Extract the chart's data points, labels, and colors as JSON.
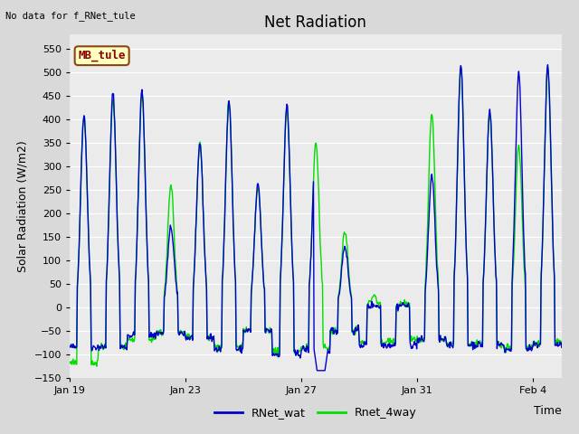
{
  "title": "Net Radiation",
  "xlabel": "Time",
  "ylabel": "Solar Radiation (W/m2)",
  "top_left_text": "No data for f_RNet_tule",
  "annotation_box_text": "MB_tule",
  "annotation_box_color": "#ffffc0",
  "annotation_box_edge_color": "#8b4513",
  "annotation_text_color": "#8b0000",
  "ylim": [
    -150,
    580
  ],
  "yticks": [
    -150,
    -100,
    -50,
    0,
    50,
    100,
    150,
    200,
    250,
    300,
    350,
    400,
    450,
    500,
    550
  ],
  "background_color": "#d9d9d9",
  "plot_bg_color": "#ebebeb",
  "line1_color": "#0000cc",
  "line2_color": "#00dd00",
  "line1_label": "RNet_wat",
  "line2_label": "Rnet_4way",
  "line_width": 1.0,
  "title_fontsize": 12,
  "axis_label_fontsize": 9,
  "tick_fontsize": 8,
  "annotation_fontsize": 9,
  "x_tick_labels": [
    "Jan 19",
    "Jan 23",
    "Jan 27",
    "Jan 31",
    "Feb 4"
  ],
  "x_tick_positions": [
    0,
    4,
    8,
    12,
    16
  ],
  "n_days": 17,
  "pts_per_day": 48,
  "day_peaks_blue": [
    410,
    455,
    460,
    170,
    350,
    440,
    260,
    430,
    355,
    130,
    5,
    5,
    280,
    515,
    420,
    500,
    515
  ],
  "day_peaks_green": [
    405,
    440,
    455,
    260,
    350,
    440,
    255,
    425,
    350,
    160,
    25,
    10,
    410,
    510,
    415,
    345,
    510
  ],
  "night_blue": [
    -85,
    -85,
    -60,
    -55,
    -65,
    -90,
    -50,
    -100,
    -90,
    -50,
    -80,
    -80,
    -70,
    -80,
    -80,
    -90,
    -80
  ],
  "night_green": [
    -120,
    -85,
    -70,
    -55,
    -65,
    -85,
    -50,
    -95,
    -85,
    -50,
    -75,
    -70,
    -70,
    -80,
    -80,
    -85,
    -75
  ]
}
